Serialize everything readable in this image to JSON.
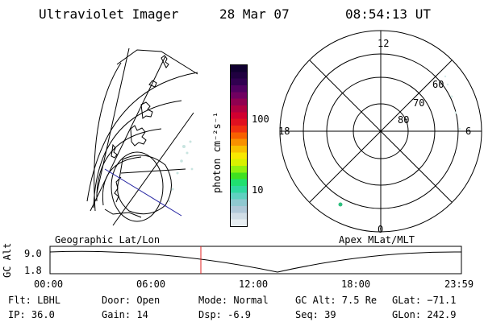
{
  "header": {
    "instrument": "Ultraviolet Imager",
    "date": "28 Mar 07",
    "time": "08:54:13 UT"
  },
  "map_left": {
    "label": "Geographic Lat/Lon"
  },
  "map_right": {
    "label": "Apex MLat/MLT",
    "mlt_labels": {
      "top": "12",
      "left": "18",
      "right": "6",
      "bottom": "0"
    },
    "lat_labels": [
      "60",
      "70",
      "80"
    ]
  },
  "colorbar": {
    "unit_label": "photon cm⁻²s⁻¹",
    "tick_labels": [
      "100",
      "10"
    ],
    "colors": [
      "#e8eef2",
      "#d0dde6",
      "#b0c8d8",
      "#8fc8d0",
      "#5fd0c0",
      "#30d8a0",
      "#20e070",
      "#40e020",
      "#90f010",
      "#d8f000",
      "#f8e800",
      "#f8c000",
      "#f89000",
      "#f86000",
      "#f03010",
      "#e01020",
      "#d00030",
      "#b00040",
      "#900050",
      "#700060",
      "#500060",
      "#300050",
      "#200040",
      "#100030"
    ]
  },
  "altitude_plot": {
    "axis_label": "GC Alt",
    "y_ticks": [
      "9.0",
      "1.8"
    ],
    "x_ticks": [
      "00:00",
      "06:00",
      "12:00",
      "18:00",
      "23:59"
    ],
    "marker_color": "#e02020"
  },
  "info": {
    "filter": "Flt: LBHL",
    "ip": "IP: 36.0",
    "door": "Door: Open",
    "gain": "Gain: 14",
    "mode": "Mode: Normal",
    "dsp": "Dsp:   -6.9",
    "gc_alt": "GC Alt: 7.5 Re",
    "seq": "Seq: 39",
    "glat": "GLat: −71.1",
    "glon": "GLon: 242.9"
  }
}
